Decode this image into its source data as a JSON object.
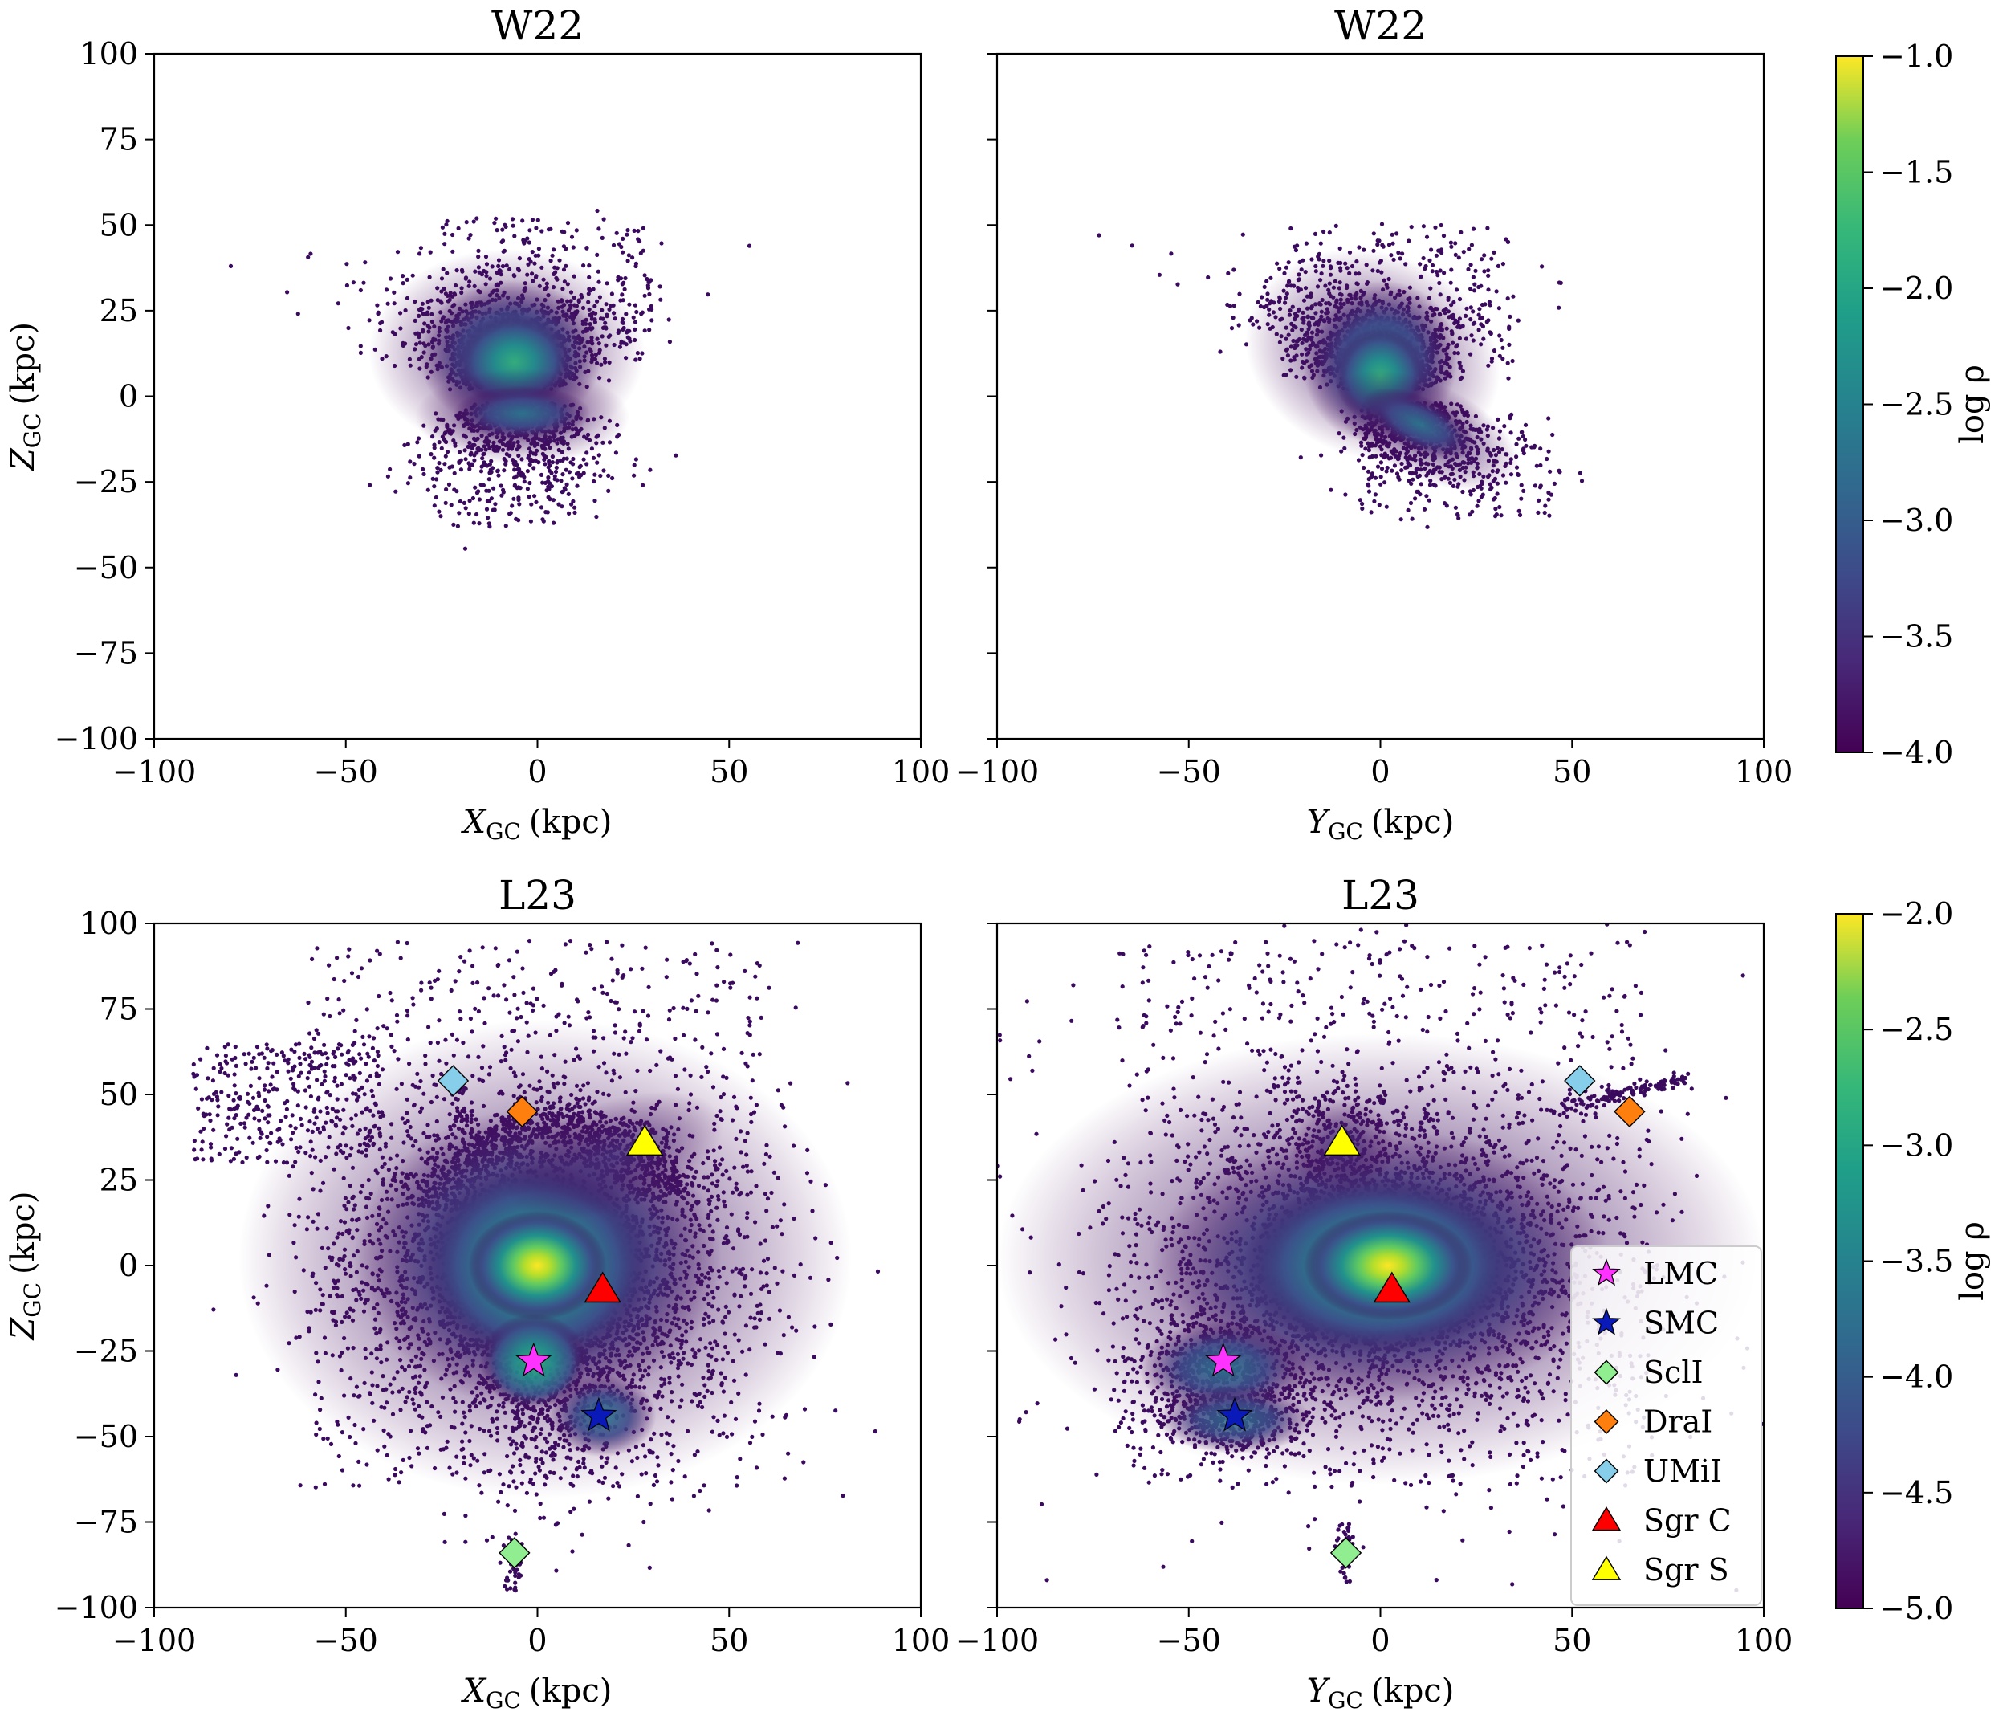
{
  "chart_data": [
    {
      "type": "scatter",
      "title": "W22",
      "xlabel": "X_GC (kpc)",
      "ylabel": "Z_GC (kpc)",
      "xlim": [
        -100,
        100
      ],
      "ylim": [
        -100,
        100
      ],
      "xticks": [
        -100,
        -50,
        0,
        50,
        100
      ],
      "yticks": [
        -100,
        -75,
        -50,
        -25,
        0,
        25,
        50,
        75,
        100
      ],
      "density": {
        "upper": {
          "x": [
            -30,
            30
          ],
          "y": [
            0,
            60
          ],
          "center": [
            -5,
            10
          ],
          "peak": -2.2
        },
        "lower": {
          "x": [
            -30,
            15
          ],
          "y": [
            -55,
            0
          ],
          "center": [
            -5,
            -8
          ],
          "peak": -2.8
        }
      },
      "outliers": [
        [
          -80,
          38
        ]
      ],
      "markers": []
    },
    {
      "type": "scatter",
      "title": "W22",
      "xlabel": "Y_GC (kpc)",
      "ylabel": "",
      "xlim": [
        -100,
        100
      ],
      "ylim": [
        -100,
        100
      ],
      "xticks": [
        -100,
        -50,
        0,
        50,
        100
      ],
      "yticks": [
        -100,
        -75,
        -50,
        -25,
        0,
        25,
        50,
        75,
        100
      ],
      "density": {
        "upper": {
          "x": [
            -35,
            45
          ],
          "y": [
            0,
            62
          ],
          "center": [
            0,
            8
          ],
          "peak": -2.3
        },
        "lower": {
          "x": [
            -10,
            47
          ],
          "y": [
            -55,
            0
          ],
          "center": [
            5,
            -8
          ],
          "peak": -2.8
        }
      },
      "outliers": [
        [
          43,
          -32
        ]
      ],
      "markers": []
    },
    {
      "type": "scatter",
      "title": "L23",
      "xlabel": "X_GC (kpc)",
      "ylabel": "Z_GC (kpc)",
      "xlim": [
        -100,
        100
      ],
      "ylim": [
        -100,
        100
      ],
      "xticks": [
        -100,
        -50,
        0,
        50,
        100
      ],
      "yticks": [
        -100,
        -75,
        -50,
        -25,
        0,
        25,
        50,
        75,
        100
      ],
      "density": {
        "core": {
          "center": [
            0,
            0
          ],
          "peak": -2.0
        },
        "lmc": {
          "center": [
            -1,
            -28
          ],
          "peak": -2.7
        },
        "smc": {
          "center": [
            17,
            -44
          ],
          "peak": -3.3
        },
        "stream_upper": {
          "center": [
            20,
            30
          ],
          "peak": -4.0
        }
      },
      "markers": [
        {
          "name": "LMC",
          "x": -1,
          "y": -28
        },
        {
          "name": "SMC",
          "x": 16,
          "y": -44
        },
        {
          "name": "SclI",
          "x": -6,
          "y": -84
        },
        {
          "name": "DraI",
          "x": -4,
          "y": 45
        },
        {
          "name": "UMiI",
          "x": -22,
          "y": 54
        },
        {
          "name": "Sgr C",
          "x": 17,
          "y": -7
        },
        {
          "name": "Sgr S",
          "x": 28,
          "y": 36
        }
      ]
    },
    {
      "type": "scatter",
      "title": "L23",
      "xlabel": "Y_GC (kpc)",
      "ylabel": "",
      "xlim": [
        -100,
        100
      ],
      "ylim": [
        -100,
        100
      ],
      "xticks": [
        -100,
        -50,
        0,
        50,
        100
      ],
      "yticks": [
        -100,
        -75,
        -50,
        -25,
        0,
        25,
        50,
        75,
        100
      ],
      "density": {
        "core": {
          "center": [
            0,
            0
          ],
          "peak": -2.0
        },
        "lmc": {
          "center": [
            -41,
            -28
          ],
          "peak": -3.0
        },
        "smc": {
          "center": [
            -38,
            -44
          ],
          "peak": -3.3
        },
        "sgr_s": {
          "center": [
            -10,
            36
          ],
          "peak": -3.6
        }
      },
      "markers": [
        {
          "name": "LMC",
          "x": -41,
          "y": -28
        },
        {
          "name": "SMC",
          "x": -38,
          "y": -44
        },
        {
          "name": "SclI",
          "x": -9,
          "y": -84
        },
        {
          "name": "DraI",
          "x": 65,
          "y": 45
        },
        {
          "name": "UMiI",
          "x": 52,
          "y": 54
        },
        {
          "name": "Sgr C",
          "x": 3,
          "y": -7
        },
        {
          "name": "Sgr S",
          "x": -10,
          "y": 36
        }
      ]
    }
  ],
  "colorbars": [
    {
      "label": "log ρ",
      "min": -4.0,
      "max": -1.0,
      "ticks": [
        "−1.0",
        "−1.5",
        "−2.0",
        "−2.5",
        "−3.0",
        "−3.5",
        "−4.0"
      ],
      "colormap": "viridis"
    },
    {
      "label": "log ρ",
      "min": -5.0,
      "max": -2.0,
      "ticks": [
        "−2.0",
        "−2.5",
        "−3.0",
        "−3.5",
        "−4.0",
        "−4.5",
        "−5.0"
      ],
      "colormap": "viridis"
    }
  ],
  "legend": {
    "placement": "lower-right (bottom-right panel)",
    "items": [
      {
        "label": "LMC",
        "shape": "star",
        "color": "#ff33ff"
      },
      {
        "label": "SMC",
        "shape": "star",
        "color": "#0a1ab8"
      },
      {
        "label": "SclI",
        "shape": "diamond",
        "color": "#90ee90"
      },
      {
        "label": "DraI",
        "shape": "diamond",
        "color": "#ff7f0e"
      },
      {
        "label": "UMiI",
        "shape": "diamond",
        "color": "#87ceeb"
      },
      {
        "label": "Sgr C",
        "shape": "triangle",
        "color": "#ff0000"
      },
      {
        "label": "Sgr S",
        "shape": "triangle",
        "color": "#ffff00"
      }
    ]
  },
  "labels": {
    "title_w22": "W22",
    "title_l23": "L23",
    "x_label_x_sym": "X",
    "x_label_y_sym": "Y",
    "gc_sub": "GC",
    "kpc_unit": "(kpc)",
    "z_label_sym": "Z",
    "tick_m100": "−100",
    "tick_m75": "−75",
    "tick_m50": "−50",
    "tick_m25": "−25",
    "tick_0": "0",
    "tick_25": "25",
    "tick_50": "50",
    "tick_75": "75",
    "tick_100": "100",
    "log_rho": "log ρ"
  },
  "colors": {
    "viridis_dark": "#440154",
    "viridis_blue": "#3b528b",
    "viridis_teal": "#21918c",
    "viridis_green": "#5ec962",
    "viridis_yellow": "#fde725",
    "point_color": "#3a0a5e"
  }
}
